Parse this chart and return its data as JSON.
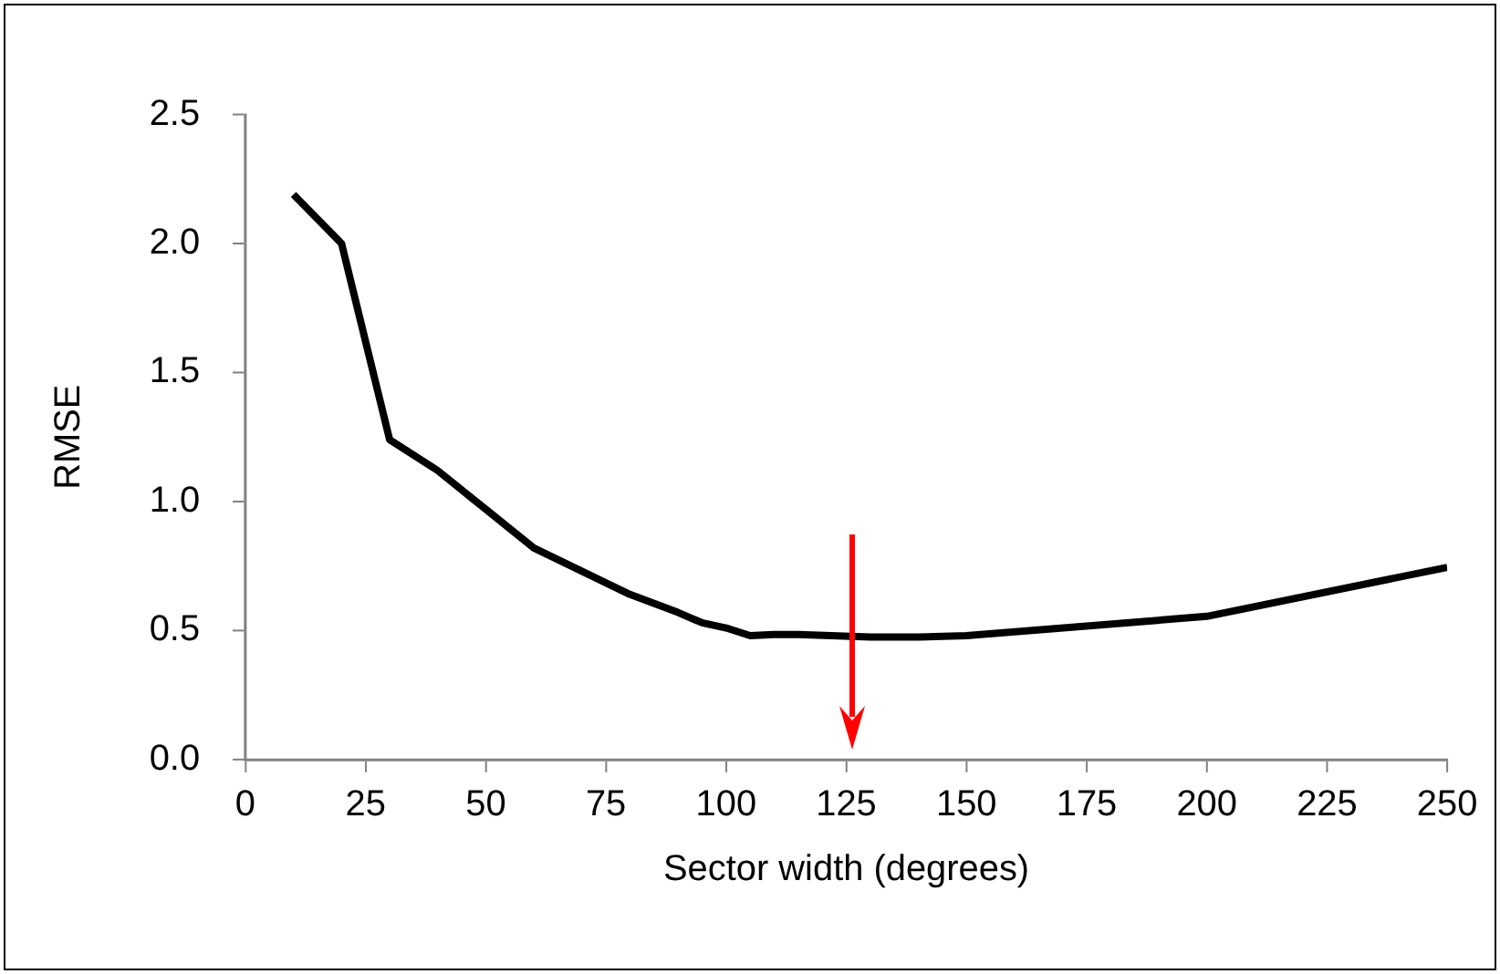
{
  "chart_data": {
    "type": "line",
    "xlabel": "Sector width (degrees)",
    "ylabel": "RMSE",
    "x": [
      10,
      20,
      30,
      40,
      50,
      60,
      70,
      80,
      90,
      95,
      100,
      105,
      110,
      115,
      130,
      140,
      150,
      200,
      250
    ],
    "series": [
      {
        "color": "#000000",
        "values": [
          2.19,
          2.0,
          1.24,
          1.12,
          0.97,
          0.82,
          0.73,
          0.64,
          0.57,
          0.53,
          0.51,
          0.48,
          0.485,
          0.485,
          0.475,
          0.475,
          0.48,
          0.555,
          0.745
        ]
      }
    ],
    "xlim": [
      0,
      250
    ],
    "xticks": [
      0,
      25,
      50,
      75,
      100,
      125,
      150,
      175,
      200,
      225,
      250
    ],
    "ylim": [
      0,
      2.5
    ],
    "yticks": [
      {
        "value": 0,
        "label": "0.0"
      },
      {
        "value": 0.5,
        "label": "0.5"
      },
      {
        "value": 1,
        "label": "1.0"
      },
      {
        "value": 1.5,
        "label": "1.5"
      },
      {
        "value": 2,
        "label": "2.0"
      },
      {
        "value": 2.5,
        "label": "2.5"
      }
    ],
    "grid": false,
    "legend": false,
    "marker": "none",
    "line_style": "solid"
  }
}
